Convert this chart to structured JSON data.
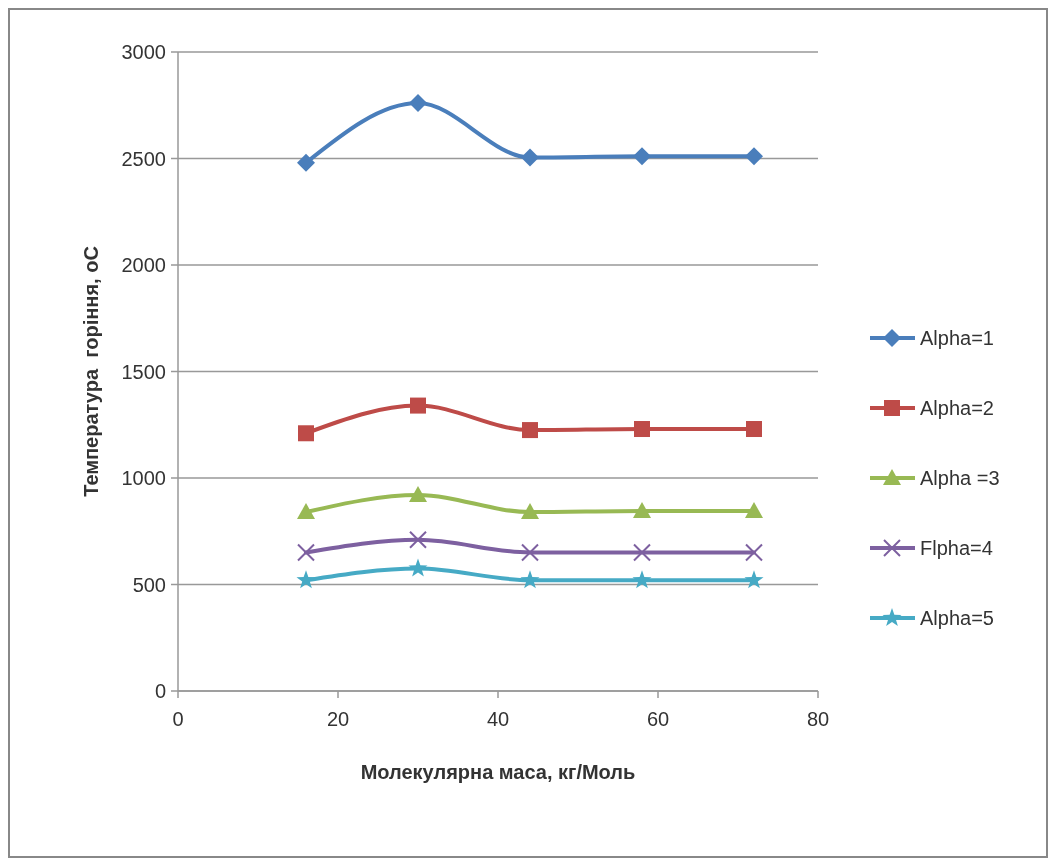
{
  "chart_data": {
    "type": "line",
    "xlabel": "Молекулярна маса, кг/Моль",
    "ylabel": "Температура  горіння, оС",
    "x": [
      16,
      30,
      44,
      58,
      72
    ],
    "xlim": [
      0,
      80
    ],
    "xticks": [
      0,
      20,
      40,
      60,
      80
    ],
    "ylim": [
      0,
      3000
    ],
    "yticks": [
      0,
      500,
      1000,
      1500,
      2000,
      2500,
      3000
    ],
    "grid": "y",
    "legend": "right",
    "series": [
      {
        "name": "Alpha=1",
        "color": "#4a7ebb",
        "marker": "diamond",
        "values": [
          2480,
          2760,
          2505,
          2510,
          2510
        ]
      },
      {
        "name": "Alpha=2",
        "color": "#be4b48",
        "marker": "square",
        "values": [
          1210,
          1340,
          1225,
          1230,
          1230
        ]
      },
      {
        "name": "Alpha =3",
        "color": "#98b954",
        "marker": "triangle",
        "values": [
          840,
          920,
          840,
          845,
          845
        ]
      },
      {
        "name": "Flpha=4",
        "color": "#7d60a0",
        "marker": "cross",
        "values": [
          650,
          710,
          650,
          650,
          650
        ]
      },
      {
        "name": "Alpha=5",
        "color": "#46aac5",
        "marker": "star",
        "values": [
          520,
          575,
          520,
          520,
          520
        ]
      }
    ]
  }
}
